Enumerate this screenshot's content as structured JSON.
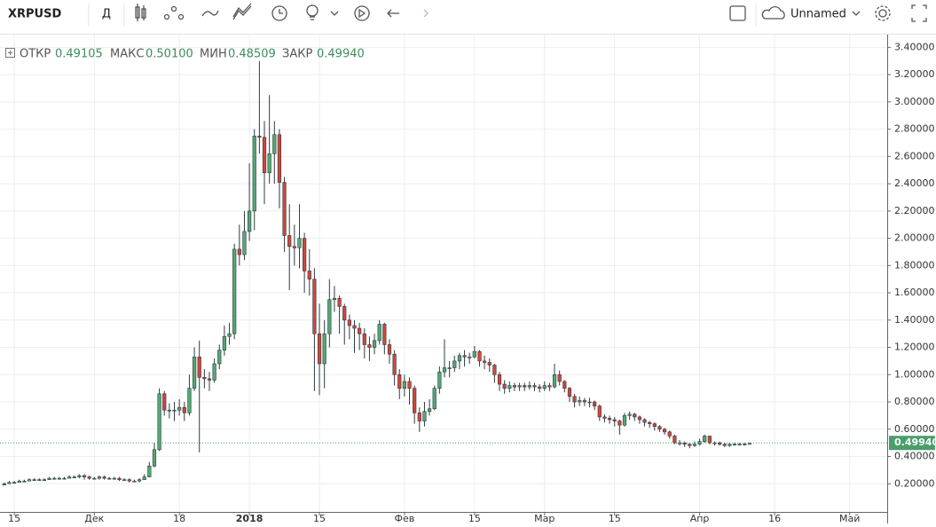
{
  "toolbar": {
    "symbol": "XRPUSD",
    "interval": "Д",
    "layout_name": "Unnamed"
  },
  "chart_data": {
    "type": "candlestick",
    "legend": {
      "labels": [
        "ОТКР",
        "МАКС",
        "МИН",
        "ЗАКР"
      ],
      "values": [
        "0.49105",
        "0.50100",
        "0.48509",
        "0.49940"
      ]
    },
    "categories": [
      null,
      null,
      "15",
      null,
      null,
      null,
      null,
      null,
      null,
      null,
      null,
      null,
      null,
      null,
      null,
      null,
      null,
      null,
      "Дек",
      null,
      null,
      null,
      null,
      null,
      null,
      null,
      null,
      null,
      null,
      null,
      null,
      null,
      null,
      null,
      null,
      "18",
      null,
      null,
      null,
      null,
      null,
      null,
      null,
      null,
      null,
      null,
      null,
      null,
      null,
      "2018",
      null,
      null,
      null,
      null,
      null,
      null,
      null,
      null,
      null,
      null,
      null,
      null,
      null,
      "15",
      null,
      null,
      null,
      null,
      null,
      null,
      null,
      null,
      null,
      null,
      null,
      null,
      null,
      null,
      null,
      null,
      "Фев",
      null,
      null,
      null,
      null,
      null,
      null,
      null,
      null,
      null,
      null,
      null,
      null,
      null,
      "15",
      null,
      null,
      null,
      null,
      null,
      null,
      null,
      null,
      null,
      null,
      null,
      null,
      null,
      "Мар",
      null,
      null,
      null,
      null,
      null,
      null,
      null,
      null,
      null,
      null,
      null,
      null,
      null,
      "15",
      null,
      null,
      null,
      null,
      null,
      null,
      null,
      null,
      null,
      null,
      null,
      null,
      null,
      null,
      null,
      null,
      "Апр",
      null,
      null,
      null,
      null,
      null,
      null,
      null,
      null,
      null,
      null,
      null,
      null,
      null,
      null,
      "16",
      null,
      null,
      null,
      null,
      null,
      null,
      null,
      null,
      null,
      null,
      null,
      null,
      null,
      null,
      "Май",
      null,
      null,
      null,
      null,
      null,
      null,
      null
    ],
    "open": [
      0.19,
      0.2,
      0.21,
      0.21,
      0.22,
      0.22,
      0.23,
      0.23,
      0.23,
      0.23,
      0.24,
      0.24,
      0.24,
      0.24,
      0.25,
      0.25,
      0.26,
      0.25,
      0.24,
      0.24,
      0.25,
      0.24,
      0.24,
      0.24,
      0.23,
      0.23,
      0.22,
      0.22,
      0.23,
      0.25,
      0.33,
      0.45,
      0.86,
      0.74,
      0.74,
      0.74,
      0.76,
      0.72,
      0.9,
      1.13,
      0.98,
      0.97,
      0.96,
      1.08,
      1.18,
      1.28,
      1.3,
      1.92,
      1.88,
      2.05,
      2.2,
      2.75,
      2.74,
      2.48,
      2.62,
      2.76,
      2.41,
      2.02,
      1.94,
      1.93,
      2.0,
      1.76,
      1.7,
      1.3,
      1.08,
      1.3,
      1.55,
      1.56,
      1.5,
      1.4,
      1.36,
      1.34,
      1.3,
      1.22,
      1.2,
      1.25,
      1.37,
      1.22,
      1.15,
      1.0,
      0.9,
      0.95,
      0.9,
      0.72,
      0.66,
      0.73,
      0.75,
      0.9,
      1.02,
      1.05,
      1.05,
      1.1,
      1.14,
      1.13,
      1.13,
      1.17,
      1.1,
      1.09,
      1.07,
      1.0,
      0.93,
      0.9,
      0.92,
      0.91,
      0.92,
      0.91,
      0.92,
      0.91,
      0.9,
      0.92,
      0.91,
      1.0,
      0.95,
      0.9,
      0.84,
      0.8,
      0.81,
      0.8,
      0.8,
      0.77,
      0.69,
      0.68,
      0.67,
      0.66,
      0.63,
      0.7,
      0.71,
      0.69,
      0.67,
      0.65,
      0.64,
      0.62,
      0.6,
      0.58,
      0.55,
      0.5,
      0.5,
      0.49,
      0.48,
      0.49,
      0.51,
      0.55,
      0.5,
      0.5,
      0.49,
      0.48,
      0.49,
      0.49,
      0.49,
      0.49105,
      null,
      null,
      null,
      null,
      null,
      null,
      null,
      null,
      null,
      null,
      null,
      null,
      null,
      null,
      null,
      null,
      null,
      null,
      null,
      null,
      null,
      null,
      null,
      null,
      null,
      null,
      null
    ],
    "high": [
      0.21,
      0.22,
      0.22,
      0.23,
      0.23,
      0.24,
      0.24,
      0.24,
      0.24,
      0.25,
      0.25,
      0.25,
      0.25,
      0.26,
      0.26,
      0.27,
      0.27,
      0.26,
      0.25,
      0.26,
      0.26,
      0.25,
      0.25,
      0.25,
      0.24,
      0.24,
      0.23,
      0.24,
      0.27,
      0.36,
      0.5,
      0.9,
      0.88,
      0.79,
      0.8,
      0.82,
      0.8,
      1.0,
      1.2,
      1.25,
      1.04,
      1.02,
      1.12,
      1.22,
      1.36,
      1.38,
      1.96,
      2.1,
      2.2,
      2.55,
      2.8,
      3.3,
      2.86,
      3.05,
      2.86,
      2.8,
      2.45,
      2.25,
      2.1,
      2.25,
      2.04,
      1.92,
      1.78,
      1.52,
      1.4,
      1.7,
      1.65,
      1.58,
      1.52,
      1.44,
      1.4,
      1.38,
      1.34,
      1.28,
      1.3,
      1.4,
      1.38,
      1.26,
      1.18,
      1.04,
      1.0,
      0.98,
      0.92,
      0.76,
      0.8,
      0.82,
      0.92,
      1.06,
      1.26,
      1.1,
      1.14,
      1.16,
      1.18,
      1.16,
      1.21,
      1.18,
      1.14,
      1.12,
      1.08,
      1.02,
      0.96,
      0.95,
      0.94,
      0.94,
      0.94,
      0.95,
      0.94,
      0.93,
      0.95,
      0.94,
      1.08,
      1.03,
      0.96,
      0.91,
      0.86,
      0.84,
      0.83,
      0.83,
      0.81,
      0.78,
      0.71,
      0.7,
      0.69,
      0.67,
      0.72,
      0.73,
      0.72,
      0.7,
      0.68,
      0.66,
      0.65,
      0.63,
      0.61,
      0.59,
      0.56,
      0.52,
      0.51,
      0.5,
      0.51,
      0.53,
      0.56,
      0.55,
      0.51,
      0.51,
      0.5,
      0.5,
      0.5,
      0.5,
      0.5,
      0.501,
      null,
      null,
      null,
      null,
      null,
      null,
      null,
      null,
      null,
      null,
      null,
      null,
      null,
      null,
      null,
      null,
      null,
      null,
      null,
      null,
      null,
      null,
      null,
      null,
      null,
      null,
      null
    ],
    "low": [
      0.19,
      0.2,
      0.2,
      0.21,
      0.21,
      0.22,
      0.22,
      0.22,
      0.22,
      0.23,
      0.23,
      0.23,
      0.23,
      0.24,
      0.24,
      0.24,
      0.23,
      0.23,
      0.23,
      0.23,
      0.23,
      0.23,
      0.23,
      0.22,
      0.22,
      0.21,
      0.21,
      0.21,
      0.23,
      0.25,
      0.32,
      0.44,
      0.7,
      0.68,
      0.66,
      0.7,
      0.66,
      0.7,
      0.88,
      0.43,
      0.9,
      0.88,
      0.94,
      1.04,
      1.14,
      1.22,
      1.26,
      1.8,
      1.84,
      1.98,
      2.06,
      2.62,
      2.25,
      2.4,
      2.4,
      2.22,
      1.9,
      1.62,
      1.8,
      1.78,
      1.6,
      1.58,
      0.88,
      0.85,
      0.9,
      1.2,
      1.46,
      1.3,
      1.22,
      1.26,
      1.16,
      1.18,
      1.12,
      1.1,
      1.15,
      1.22,
      1.15,
      1.08,
      0.92,
      0.82,
      0.84,
      0.78,
      0.64,
      0.58,
      0.62,
      0.7,
      0.74,
      0.86,
      0.98,
      0.98,
      1.02,
      1.04,
      1.06,
      1.08,
      1.12,
      1.06,
      1.04,
      1.02,
      0.94,
      0.88,
      0.86,
      0.87,
      0.88,
      0.88,
      0.88,
      0.89,
      0.88,
      0.87,
      0.88,
      0.88,
      0.9,
      0.92,
      0.87,
      0.8,
      0.76,
      0.77,
      0.77,
      0.76,
      0.74,
      0.66,
      0.65,
      0.64,
      0.62,
      0.56,
      0.62,
      0.67,
      0.66,
      0.64,
      0.62,
      0.61,
      0.59,
      0.58,
      0.56,
      0.53,
      0.49,
      0.48,
      0.47,
      0.46,
      0.47,
      0.48,
      0.5,
      0.49,
      0.48,
      0.48,
      0.47,
      0.47,
      0.48,
      0.48,
      0.48,
      0.48509,
      null,
      null,
      null,
      null,
      null,
      null,
      null,
      null,
      null,
      null,
      null,
      null,
      null,
      null,
      null,
      null,
      null,
      null,
      null,
      null,
      null,
      null,
      null,
      null,
      null,
      null,
      null
    ],
    "close": [
      0.2,
      0.21,
      0.21,
      0.22,
      0.22,
      0.23,
      0.23,
      0.23,
      0.23,
      0.24,
      0.24,
      0.24,
      0.24,
      0.25,
      0.25,
      0.26,
      0.25,
      0.24,
      0.24,
      0.25,
      0.24,
      0.24,
      0.24,
      0.23,
      0.23,
      0.22,
      0.22,
      0.23,
      0.25,
      0.33,
      0.45,
      0.86,
      0.74,
      0.74,
      0.74,
      0.76,
      0.72,
      0.9,
      1.13,
      0.98,
      0.97,
      0.96,
      1.08,
      1.18,
      1.28,
      1.3,
      1.92,
      1.88,
      2.05,
      2.2,
      2.75,
      2.74,
      2.48,
      2.62,
      2.76,
      2.41,
      2.02,
      1.94,
      1.93,
      2.0,
      1.76,
      1.7,
      1.3,
      1.08,
      1.3,
      1.55,
      1.56,
      1.5,
      1.4,
      1.36,
      1.34,
      1.3,
      1.22,
      1.2,
      1.25,
      1.37,
      1.22,
      1.15,
      1.0,
      0.9,
      0.95,
      0.9,
      0.72,
      0.66,
      0.73,
      0.75,
      0.9,
      1.02,
      1.05,
      1.05,
      1.1,
      1.14,
      1.13,
      1.13,
      1.17,
      1.1,
      1.09,
      1.07,
      1.0,
      0.93,
      0.9,
      0.92,
      0.91,
      0.92,
      0.91,
      0.92,
      0.91,
      0.9,
      0.92,
      0.91,
      1.0,
      0.95,
      0.9,
      0.84,
      0.8,
      0.81,
      0.8,
      0.8,
      0.77,
      0.69,
      0.68,
      0.67,
      0.66,
      0.63,
      0.7,
      0.71,
      0.69,
      0.67,
      0.65,
      0.64,
      0.62,
      0.6,
      0.58,
      0.55,
      0.5,
      0.5,
      0.49,
      0.48,
      0.49,
      0.51,
      0.55,
      0.5,
      0.5,
      0.49,
      0.48,
      0.49,
      0.49,
      0.49,
      0.491,
      0.4994,
      null,
      null,
      null,
      null,
      null,
      null,
      null,
      null,
      null,
      null,
      null,
      null,
      null,
      null,
      null,
      null,
      null,
      null,
      null,
      null,
      null,
      null,
      null,
      null,
      null,
      null,
      null
    ],
    "ylim": [
      0,
      3.5
    ],
    "yticks": [
      {
        "value": 0.2,
        "label": "0.20000"
      },
      {
        "value": 0.4,
        "label": "0.40000"
      },
      {
        "value": 0.6,
        "label": "0.60000"
      },
      {
        "value": 0.8,
        "label": "0.80000"
      },
      {
        "value": 1.0,
        "label": "1.00000"
      },
      {
        "value": 1.2,
        "label": "1.20000"
      },
      {
        "value": 1.4,
        "label": "1.40000"
      },
      {
        "value": 1.6,
        "label": "1.60000"
      },
      {
        "value": 1.8,
        "label": "1.80000"
      },
      {
        "value": 2.0,
        "label": "2.00000"
      },
      {
        "value": 2.2,
        "label": "2.20000"
      },
      {
        "value": 2.4,
        "label": "2.40000"
      },
      {
        "value": 2.6,
        "label": "2.60000"
      },
      {
        "value": 2.8,
        "label": "2.80000"
      },
      {
        "value": 3.0,
        "label": "3.00000"
      },
      {
        "value": 3.2,
        "label": "3.20000"
      },
      {
        "value": 3.4,
        "label": "3.40000"
      }
    ],
    "grid": true,
    "up_color": "#53a873",
    "down_color": "#d2453c",
    "wick_color": "#2f3c42",
    "last_price_color": "#4a9e6b"
  }
}
